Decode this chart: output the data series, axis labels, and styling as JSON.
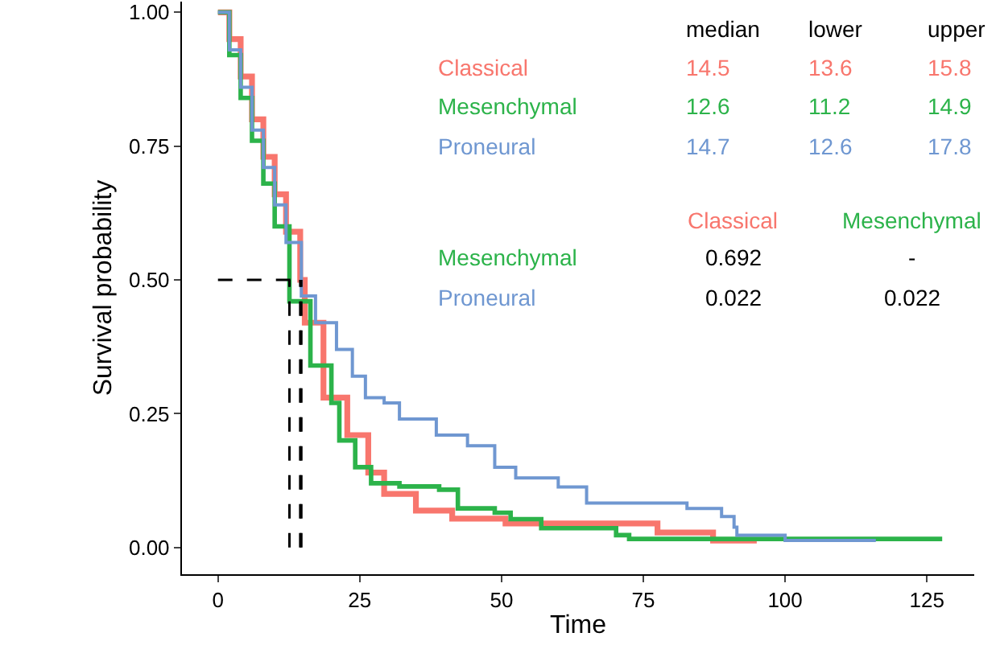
{
  "chart_data": {
    "type": "step",
    "xlabel": "Time",
    "ylabel": "Survival probability",
    "xlim": [
      -6.35,
      133.35
    ],
    "xticks": [
      0,
      25,
      50,
      75,
      100,
      125
    ],
    "ylim": [
      -0.05,
      1.02
    ],
    "yticks": [
      {
        "value": 0,
        "label": "0.00"
      },
      {
        "value": 0.25,
        "label": "0.25"
      },
      {
        "value": 0.5,
        "label": "0.50"
      },
      {
        "value": 0.75,
        "label": "0.75"
      },
      {
        "value": 1,
        "label": "1.00"
      }
    ],
    "marker": "none",
    "line_style": "solid",
    "series": [
      {
        "color": "#f8766d",
        "x": [
          0,
          2,
          4,
          6,
          8,
          10,
          12,
          14.5,
          15.3,
          18.6,
          22.8,
          26.5,
          29.3,
          34.9,
          41.3,
          50.7,
          77.5,
          87.3,
          95
        ],
        "values": [
          1,
          0.95,
          0.88,
          0.8,
          0.73,
          0.66,
          0.59,
          0.5,
          0.42,
          0.28,
          0.21,
          0.14,
          0.1,
          0.069,
          0.054,
          0.045,
          0.028,
          0.013,
          0.013
        ]
      },
      {
        "color": "#2cb34a",
        "x": [
          0,
          2,
          4,
          6,
          8,
          10,
          12.6,
          16.3,
          20,
          21.4,
          24.2,
          27,
          32,
          39,
          42.3,
          48.8,
          51.6,
          57,
          70.2,
          72.5,
          127.7
        ],
        "values": [
          1,
          0.92,
          0.84,
          0.76,
          0.68,
          0.6,
          0.46,
          0.34,
          0.27,
          0.2,
          0.15,
          0.12,
          0.114,
          0.108,
          0.073,
          0.065,
          0.053,
          0.036,
          0.023,
          0.016,
          0.016
        ]
      },
      {
        "color": "#6f97d1",
        "x": [
          0,
          2,
          4,
          6,
          8,
          10,
          12,
          14.7,
          17.2,
          20.9,
          23.7,
          26,
          29.3,
          32,
          38.5,
          44,
          48.8,
          52.5,
          60,
          65,
          82.7,
          88.8,
          91,
          91.5,
          100,
          116
        ],
        "values": [
          1,
          0.93,
          0.86,
          0.78,
          0.71,
          0.64,
          0.57,
          0.47,
          0.42,
          0.37,
          0.32,
          0.28,
          0.27,
          0.24,
          0.21,
          0.19,
          0.15,
          0.13,
          0.113,
          0.083,
          0.073,
          0.058,
          0.038,
          0.023,
          0.013,
          0.013
        ]
      }
    ],
    "ref_lines": [
      {
        "axis": "y",
        "value": 0.5,
        "color": "#000000",
        "line_style": "dashed"
      },
      {
        "axis": "x",
        "value": 12.6,
        "color": "#000000",
        "line_style": "dashed"
      },
      {
        "axis": "x",
        "value": 14.5,
        "color": "#000000",
        "line_style": "dashed"
      },
      {
        "axis": "x",
        "value": 14.7,
        "color": "#000000",
        "line_style": "dashed"
      }
    ],
    "annotations": [
      "median",
      "lower",
      "upper",
      "Classical",
      "14.5",
      "13.6",
      "15.8",
      "Mesenchymal",
      "12.6",
      "11.2",
      "14.9",
      "Proneural",
      "14.7",
      "12.6",
      "17.8",
      "Classical",
      "Mesenchymal",
      "Mesenchymal",
      "0.692",
      "-",
      "Proneural",
      "0.022",
      "0.022"
    ]
  }
}
